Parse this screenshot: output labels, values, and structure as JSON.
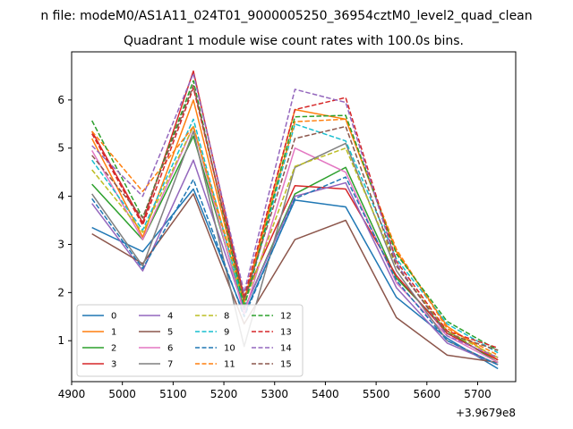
{
  "chart_data": {
    "type": "line",
    "suptitle": "n file: modeM0/AS1A11_024T01_9000005250_36954cztM0_level2_quad_clean",
    "title": "Quadrant 1 module wise count rates with 100.0s bins.",
    "xlabel": "",
    "ylabel": "",
    "offset_text": "+3.9679e8",
    "x": [
      4940,
      5040,
      5140,
      5240,
      5340,
      5440,
      5540,
      5640,
      5740
    ],
    "xlim": [
      4900,
      5775
    ],
    "ylim": [
      0.15,
      7.0
    ],
    "xticks": [
      4900,
      5000,
      5100,
      5200,
      5300,
      5400,
      5500,
      5600,
      5700
    ],
    "yticks": [
      1,
      2,
      3,
      4,
      5,
      6
    ],
    "legend_position": "lower-left",
    "series": [
      {
        "name": "0",
        "color": "#1f77b4",
        "dash": false,
        "values": [
          3.35,
          2.85,
          4.15,
          1.55,
          3.92,
          3.78,
          1.9,
          1.05,
          0.42
        ]
      },
      {
        "name": "1",
        "color": "#ff7f0e",
        "dash": false,
        "values": [
          5.2,
          3.15,
          6.0,
          1.8,
          5.8,
          5.6,
          2.85,
          1.3,
          0.6
        ]
      },
      {
        "name": "2",
        "color": "#2ca02c",
        "dash": false,
        "values": [
          4.25,
          3.1,
          5.25,
          1.65,
          4.05,
          4.6,
          2.3,
          1.2,
          0.55
        ]
      },
      {
        "name": "3",
        "color": "#d62728",
        "dash": false,
        "values": [
          5.35,
          3.45,
          6.6,
          1.9,
          4.22,
          4.15,
          2.35,
          1.15,
          0.6
        ]
      },
      {
        "name": "4",
        "color": "#9467bd",
        "dash": false,
        "values": [
          3.85,
          2.45,
          4.75,
          1.65,
          4.0,
          4.28,
          2.1,
          0.95,
          0.5
        ]
      },
      {
        "name": "5",
        "color": "#8c564b",
        "dash": false,
        "values": [
          3.22,
          2.6,
          4.05,
          1.35,
          3.1,
          3.5,
          1.48,
          0.7,
          0.55
        ]
      },
      {
        "name": "6",
        "color": "#e377c2",
        "dash": false,
        "values": [
          4.95,
          3.1,
          5.45,
          1.55,
          5.0,
          4.5,
          2.2,
          1.1,
          0.55
        ]
      },
      {
        "name": "7",
        "color": "#7f7f7f",
        "dash": false,
        "values": [
          4.05,
          2.55,
          5.35,
          0.88,
          4.6,
          5.1,
          2.45,
          1.0,
          0.5
        ]
      },
      {
        "name": "8",
        "color": "#bcbd22",
        "dash": true,
        "values": [
          4.55,
          3.25,
          5.45,
          1.75,
          4.62,
          5.0,
          2.55,
          1.2,
          0.65
        ]
      },
      {
        "name": "9",
        "color": "#17becf",
        "dash": true,
        "values": [
          4.75,
          3.3,
          5.6,
          1.7,
          5.5,
          5.15,
          2.7,
          1.35,
          0.75
        ]
      },
      {
        "name": "10",
        "color": "#1f77b4",
        "dash": true,
        "values": [
          3.95,
          2.5,
          4.35,
          1.5,
          3.95,
          4.4,
          2.25,
          1.0,
          0.5
        ]
      },
      {
        "name": "11",
        "color": "#ff7f0e",
        "dash": true,
        "values": [
          5.35,
          4.1,
          5.45,
          1.85,
          5.55,
          5.6,
          2.9,
          1.25,
          0.7
        ]
      },
      {
        "name": "12",
        "color": "#2ca02c",
        "dash": true,
        "values": [
          5.57,
          3.55,
          6.4,
          1.7,
          5.65,
          5.68,
          2.8,
          1.4,
          0.8
        ]
      },
      {
        "name": "13",
        "color": "#d62728",
        "dash": true,
        "values": [
          5.3,
          3.4,
          6.25,
          1.9,
          5.8,
          6.05,
          2.65,
          1.2,
          0.85
        ]
      },
      {
        "name": "14",
        "color": "#9467bd",
        "dash": true,
        "values": [
          5.05,
          4.0,
          6.55,
          2.0,
          6.22,
          5.95,
          2.6,
          1.1,
          0.65
        ]
      },
      {
        "name": "15",
        "color": "#8c564b",
        "dash": true,
        "values": [
          4.85,
          3.55,
          6.3,
          1.85,
          5.2,
          5.45,
          2.55,
          1.15,
          0.8
        ]
      }
    ]
  }
}
